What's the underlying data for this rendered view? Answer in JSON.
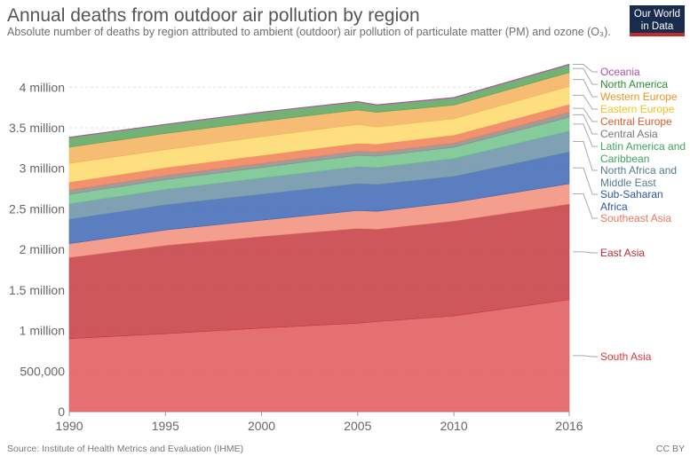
{
  "header": {
    "title": "Annual deaths from outdoor air pollution by region",
    "subtitle": "Absolute number of deaths by region attributed to ambient (outdoor) air pollution of particulate matter (PM) and ozone (O₃)."
  },
  "logo": {
    "line1": "Our World",
    "line2": "in Data"
  },
  "footer": {
    "source": "Source: Institute of Health Metrics and Evaluation (IHME)",
    "license": "CC BY"
  },
  "chart_data": {
    "type": "area",
    "stacked": true,
    "title": "Annual deaths from outdoor air pollution by region",
    "x": [
      1990,
      1995,
      2000,
      2005,
      2006,
      2010,
      2016
    ],
    "x_ticks": [
      "1990",
      "1995",
      "2000",
      "2005",
      "2010",
      "2016"
    ],
    "y_ticks": [
      "0",
      "500,000",
      "1 million",
      "1.5 million",
      "2 million",
      "2.5 million",
      "3 million",
      "3.5 million",
      "4 million"
    ],
    "ylim": [
      0,
      4200000
    ],
    "grid": true,
    "legend_position": "right",
    "series": [
      {
        "name": "South Asia",
        "color": "#e15759",
        "values": [
          900000,
          960000,
          1030000,
          1090000,
          1110000,
          1180000,
          1380000
        ]
      },
      {
        "name": "East Asia",
        "color": "#c53a3e",
        "values": [
          1000000,
          1090000,
          1130000,
          1170000,
          1140000,
          1170000,
          1180000
        ]
      },
      {
        "name": "Southeast Asia",
        "color": "#f28e7a",
        "values": [
          170000,
          190000,
          200000,
          220000,
          220000,
          230000,
          250000
        ]
      },
      {
        "name": "Sub-Saharan Africa",
        "color": "#3d67b5",
        "values": [
          300000,
          310000,
          320000,
          330000,
          330000,
          320000,
          390000
        ]
      },
      {
        "name": "North Africa and Middle East",
        "color": "#6a8fa6",
        "values": [
          190000,
          190000,
          200000,
          210000,
          210000,
          220000,
          260000
        ]
      },
      {
        "name": "Latin America and Caribbean",
        "color": "#70c28a",
        "values": [
          120000,
          120000,
          130000,
          140000,
          140000,
          140000,
          170000
        ]
      },
      {
        "name": "Central Asia",
        "color": "#8c8c8c",
        "values": [
          50000,
          50000,
          50000,
          50000,
          50000,
          50000,
          60000
        ]
      },
      {
        "name": "Central Europe",
        "color": "#f07e55",
        "values": [
          100000,
          100000,
          100000,
          100000,
          100000,
          100000,
          100000
        ]
      },
      {
        "name": "Eastern Europe",
        "color": "#fdd969",
        "values": [
          230000,
          220000,
          230000,
          230000,
          210000,
          200000,
          220000
        ]
      },
      {
        "name": "Western Europe",
        "color": "#f6b05a",
        "values": [
          200000,
          200000,
          190000,
          180000,
          180000,
          170000,
          170000
        ]
      },
      {
        "name": "North America",
        "color": "#5aa35c",
        "values": [
          120000,
          110000,
          110000,
          100000,
          90000,
          90000,
          100000
        ]
      },
      {
        "name": "Oceania",
        "color": "#b04fa5",
        "values": [
          5000,
          5000,
          5000,
          5000,
          5000,
          5000,
          5000
        ]
      }
    ]
  },
  "labels": [
    {
      "text": "Oceania",
      "series": "Oceania",
      "color": "#b04fa5"
    },
    {
      "text": "North America",
      "series": "North America",
      "color": "#2c8a3a"
    },
    {
      "text": "Western Europe",
      "series": "Western Europe",
      "color": "#e8961e"
    },
    {
      "text": "Eastern Europe",
      "series": "Eastern Europe",
      "color": "#f0c21a"
    },
    {
      "text": "Central Europe",
      "series": "Central Europe",
      "color": "#e05a2b"
    },
    {
      "text": "Central Asia",
      "series": "Central Asia",
      "color": "#777777"
    },
    {
      "text": "Latin America and",
      "text2": "Caribbean",
      "series": "Latin America and Caribbean",
      "color": "#3fa35c"
    },
    {
      "text": "North Africa and",
      "text2": "Middle East",
      "series": "North Africa and Middle East",
      "color": "#557a93"
    },
    {
      "text": "Sub-Saharan",
      "text2": "Africa",
      "series": "Sub-Saharan Africa",
      "color": "#2d55a3"
    },
    {
      "text": "Southeast Asia",
      "series": "Southeast Asia",
      "color": "#e8775e"
    },
    {
      "text": "East Asia",
      "series": "East Asia",
      "color": "#c02d32"
    },
    {
      "text": "South Asia",
      "series": "South Asia",
      "color": "#d93a3c"
    }
  ]
}
